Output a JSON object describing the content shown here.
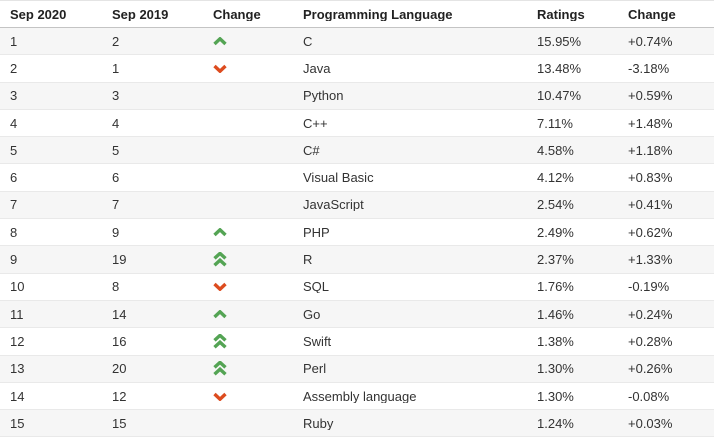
{
  "table": {
    "columns": [
      "Sep 2020",
      "Sep 2019",
      "Change",
      "Programming Language",
      "Ratings",
      "Change"
    ],
    "rows": [
      {
        "rank_2020": "1",
        "rank_2019": "2",
        "change": "up",
        "language": "C",
        "ratings": "15.95%",
        "change_pct": "+0.74%"
      },
      {
        "rank_2020": "2",
        "rank_2019": "1",
        "change": "down",
        "language": "Java",
        "ratings": "13.48%",
        "change_pct": "-3.18%"
      },
      {
        "rank_2020": "3",
        "rank_2019": "3",
        "change": "none",
        "language": "Python",
        "ratings": "10.47%",
        "change_pct": "+0.59%"
      },
      {
        "rank_2020": "4",
        "rank_2019": "4",
        "change": "none",
        "language": "C++",
        "ratings": "7.11%",
        "change_pct": "+1.48%"
      },
      {
        "rank_2020": "5",
        "rank_2019": "5",
        "change": "none",
        "language": "C#",
        "ratings": "4.58%",
        "change_pct": "+1.18%"
      },
      {
        "rank_2020": "6",
        "rank_2019": "6",
        "change": "none",
        "language": "Visual Basic",
        "ratings": "4.12%",
        "change_pct": "+0.83%"
      },
      {
        "rank_2020": "7",
        "rank_2019": "7",
        "change": "none",
        "language": "JavaScript",
        "ratings": "2.54%",
        "change_pct": "+0.41%"
      },
      {
        "rank_2020": "8",
        "rank_2019": "9",
        "change": "up",
        "language": "PHP",
        "ratings": "2.49%",
        "change_pct": "+0.62%"
      },
      {
        "rank_2020": "9",
        "rank_2019": "19",
        "change": "up2",
        "language": "R",
        "ratings": "2.37%",
        "change_pct": "+1.33%"
      },
      {
        "rank_2020": "10",
        "rank_2019": "8",
        "change": "down",
        "language": "SQL",
        "ratings": "1.76%",
        "change_pct": "-0.19%"
      },
      {
        "rank_2020": "11",
        "rank_2019": "14",
        "change": "up",
        "language": "Go",
        "ratings": "1.46%",
        "change_pct": "+0.24%"
      },
      {
        "rank_2020": "12",
        "rank_2019": "16",
        "change": "up2",
        "language": "Swift",
        "ratings": "1.38%",
        "change_pct": "+0.28%"
      },
      {
        "rank_2020": "13",
        "rank_2019": "20",
        "change": "up2",
        "language": "Perl",
        "ratings": "1.30%",
        "change_pct": "+0.26%"
      },
      {
        "rank_2020": "14",
        "rank_2019": "12",
        "change": "down",
        "language": "Assembly language",
        "ratings": "1.30%",
        "change_pct": "-0.08%"
      },
      {
        "rank_2020": "15",
        "rank_2019": "15",
        "change": "none",
        "language": "Ruby",
        "ratings": "1.24%",
        "change_pct": "+0.03%"
      }
    ]
  },
  "colors": {
    "up_arrow": "#54a454",
    "down_arrow": "#dd4c1f",
    "stripe": "#f6f6f6"
  }
}
